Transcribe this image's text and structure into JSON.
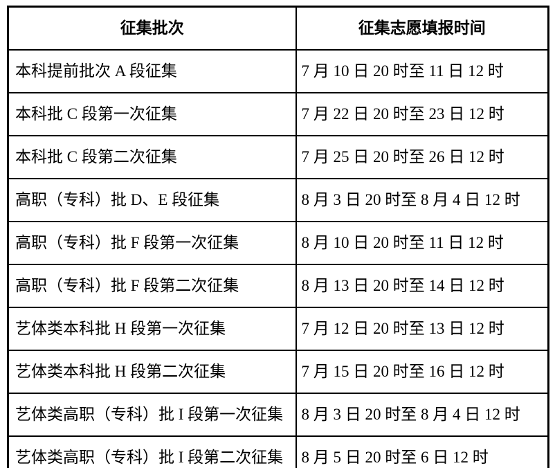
{
  "colors": {
    "border": "#000000",
    "background": "#ffffff",
    "text": "#000000"
  },
  "table": {
    "headers": {
      "batch": "征集批次",
      "time": "征集志愿填报时间"
    },
    "rows": [
      {
        "batch": "本科提前批次 A 段征集",
        "time": "7 月 10 日 20 时至 11 日 12 时"
      },
      {
        "batch": "本科批 C 段第一次征集",
        "time": "7 月 22 日 20 时至 23 日 12 时"
      },
      {
        "batch": "本科批 C 段第二次征集",
        "time": "7 月 25 日 20 时至 26 日 12 时"
      },
      {
        "batch": "高职（专科）批 D、E 段征集",
        "time": "8 月 3 日 20 时至 8 月 4 日 12 时"
      },
      {
        "batch": "高职（专科）批 F 段第一次征集",
        "time": "8 月 10 日 20 时至 11 日 12 时"
      },
      {
        "batch": "高职（专科）批 F 段第二次征集",
        "time": "8 月 13 日 20 时至 14 日 12 时"
      },
      {
        "batch": "艺体类本科批 H 段第一次征集",
        "time": "7 月 12 日 20 时至 13 日 12 时"
      },
      {
        "batch": "艺体类本科批 H 段第二次征集",
        "time": "7 月 15 日 20 时至 16 日 12 时"
      },
      {
        "batch": "艺体类高职（专科）批 I 段第一次征集",
        "time": "8 月 3 日 20 时至 8 月 4 日 12 时"
      },
      {
        "batch": "艺体类高职（专科）批 I 段第二次征集",
        "time": "8 月 5 日 20 时至 6 日 12 时"
      }
    ]
  }
}
